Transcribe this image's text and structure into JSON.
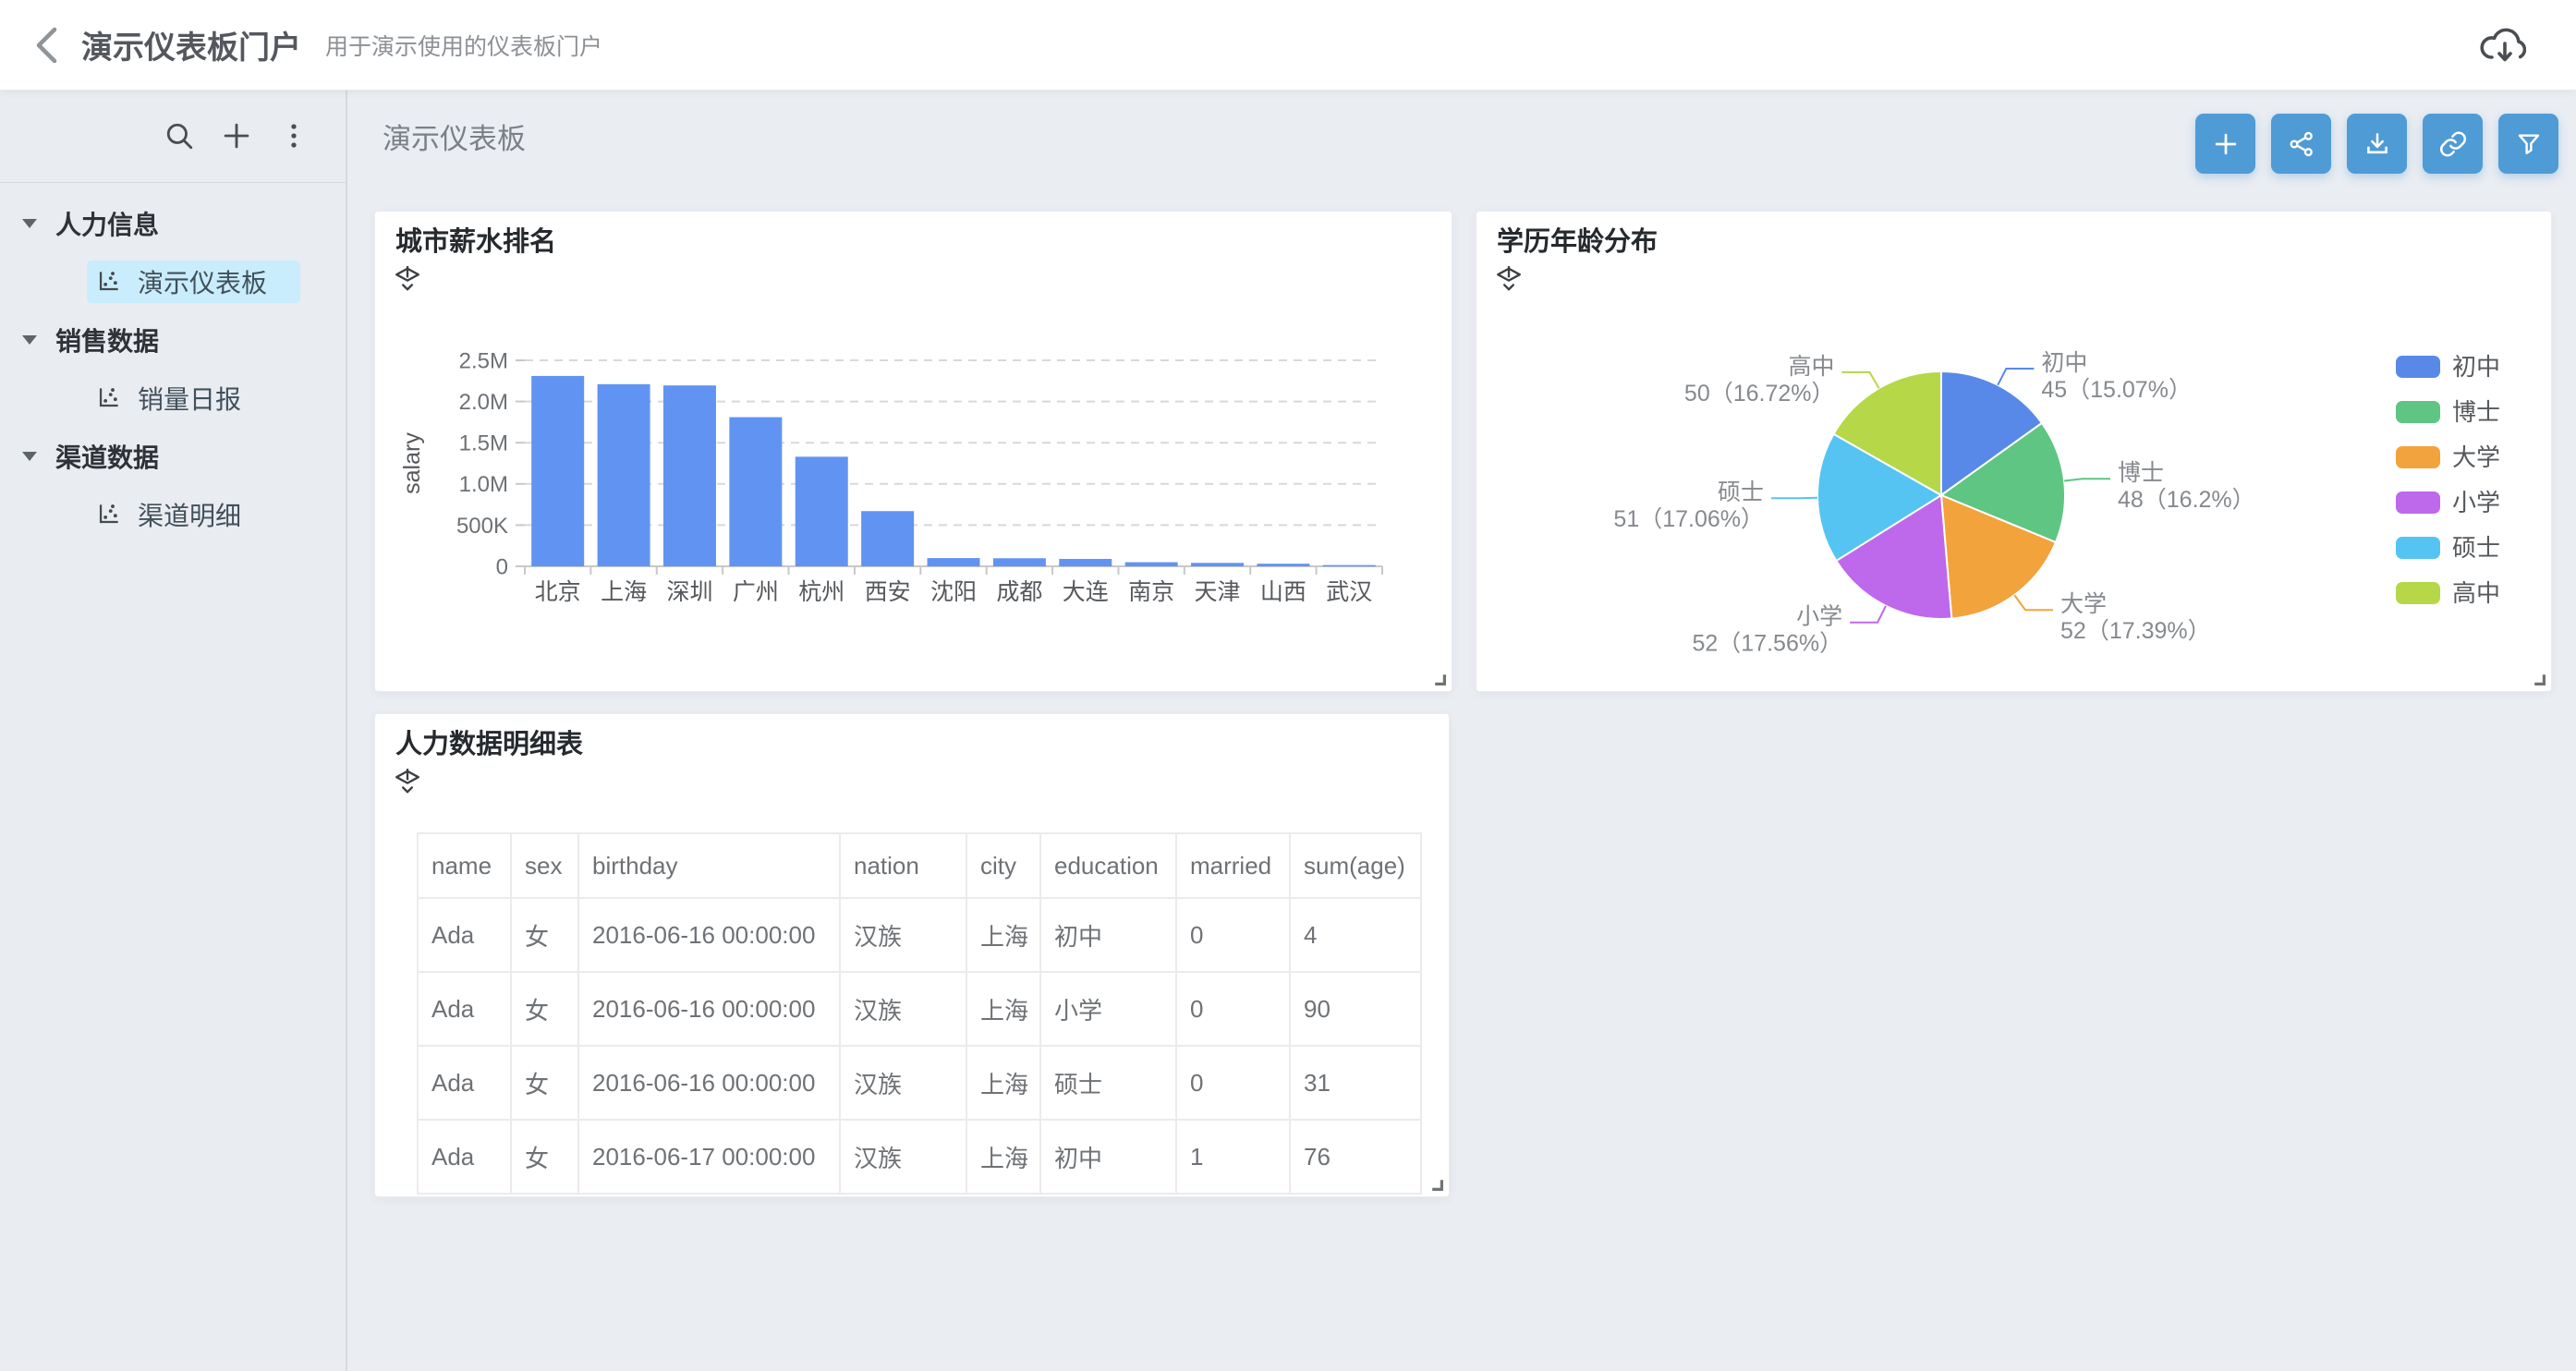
{
  "header": {
    "title": "演示仪表板门户",
    "subtitle": "用于演示使用的仪表板门户",
    "icons": [
      "back-chevron-icon",
      "cloud-download-icon"
    ]
  },
  "sidebar": {
    "tools": [
      {
        "name": "search",
        "icon": "search-icon"
      },
      {
        "name": "add",
        "icon": "plus-icon"
      },
      {
        "name": "more",
        "icon": "kebab-menu-icon"
      }
    ],
    "groups": [
      {
        "label": "人力信息",
        "items": [
          {
            "label": "演示仪表板",
            "selected": true
          }
        ]
      },
      {
        "label": "销售数据",
        "items": [
          {
            "label": "销量日报",
            "selected": false
          }
        ]
      },
      {
        "label": "渠道数据",
        "items": [
          {
            "label": "渠道明细",
            "selected": false
          }
        ]
      }
    ]
  },
  "main": {
    "page_title": "演示仪表板",
    "toolbar_buttons": [
      {
        "name": "add",
        "icon": "plus-icon"
      },
      {
        "name": "share",
        "icon": "share-icon"
      },
      {
        "name": "export",
        "icon": "download-icon"
      },
      {
        "name": "link",
        "icon": "link-icon"
      },
      {
        "name": "filter",
        "icon": "filter-icon"
      }
    ]
  },
  "cards": {
    "bar_card": {
      "title": "城市薪水排名"
    },
    "pie_card": {
      "title": "学历年龄分布"
    },
    "table_card": {
      "title": "人力数据明细表",
      "columns": [
        "name",
        "sex",
        "birthday",
        "nation",
        "city",
        "education",
        "married",
        "sum(age)"
      ],
      "rows": [
        [
          "Ada",
          "女",
          "2016-06-16 00:00:00",
          "汉族",
          "上海",
          "初中",
          "0",
          "4"
        ],
        [
          "Ada",
          "女",
          "2016-06-16 00:00:00",
          "汉族",
          "上海",
          "小学",
          "0",
          "90"
        ],
        [
          "Ada",
          "女",
          "2016-06-16 00:00:00",
          "汉族",
          "上海",
          "硕士",
          "0",
          "31"
        ],
        [
          "Ada",
          "女",
          "2016-06-17 00:00:00",
          "汉族",
          "上海",
          "初中",
          "1",
          "76"
        ]
      ]
    }
  },
  "chart_data": [
    {
      "type": "bar",
      "title": "城市薪水排名",
      "categories": [
        "北京",
        "上海",
        "深圳",
        "广州",
        "杭州",
        "西安",
        "沈阳",
        "成都",
        "大连",
        "南京",
        "天津",
        "山西",
        "武汉"
      ],
      "values": [
        2310000,
        2210000,
        2195000,
        1810000,
        1330000,
        670000,
        100000,
        98000,
        90000,
        50000,
        42000,
        32000,
        15000
      ],
      "xlabel": "",
      "ylabel": "salary",
      "ylim": [
        0,
        2500000
      ],
      "yticks": [
        {
          "v": 0,
          "label": "0"
        },
        {
          "v": 500000,
          "label": "500K"
        },
        {
          "v": 1000000,
          "label": "1.0M"
        },
        {
          "v": 1500000,
          "label": "1.5M"
        },
        {
          "v": 2000000,
          "label": "2.0M"
        },
        {
          "v": 2500000,
          "label": "2.5M"
        }
      ],
      "grid": true,
      "bar_color": "#6194f2"
    },
    {
      "type": "pie",
      "title": "学历年龄分布",
      "legend_position": "right",
      "series": [
        {
          "name": "初中",
          "value": 45,
          "pct": "15.07%",
          "color": "#5889e8"
        },
        {
          "name": "博士",
          "value": 48,
          "pct": "16.2%",
          "color": "#5fc583"
        },
        {
          "name": "大学",
          "value": 52,
          "pct": "17.39%",
          "color": "#f2a33c"
        },
        {
          "name": "小学",
          "value": 52,
          "pct": "17.56%",
          "color": "#be68ec"
        },
        {
          "name": "硕士",
          "value": 51,
          "pct": "17.06%",
          "color": "#55c4f2"
        },
        {
          "name": "高中",
          "value": 50,
          "pct": "16.72%",
          "color": "#b5d748"
        }
      ]
    }
  ],
  "colors": {
    "accent": "#4f9bd5",
    "page_bg": "#eaedf2",
    "selected_item_bg": "#c9edfc",
    "bar": "#6194f2",
    "axis_text": "#6d7175",
    "label_text": "#86898e"
  }
}
